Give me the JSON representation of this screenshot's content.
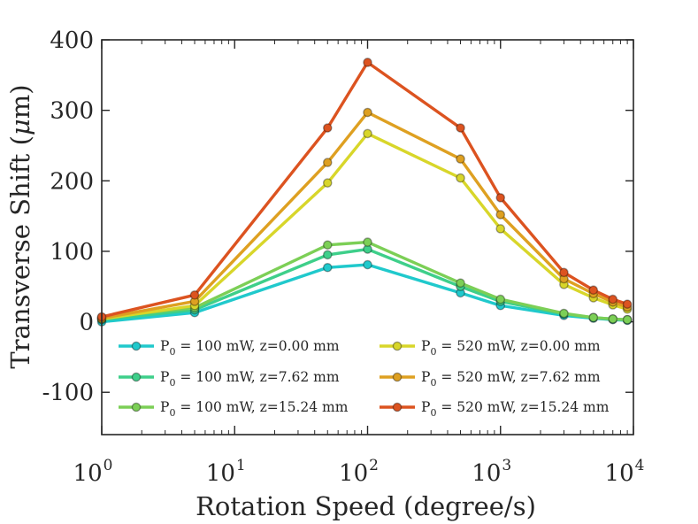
{
  "chart_data": {
    "type": "line",
    "x_scale": "log",
    "x": [
      1,
      5,
      50,
      100,
      500,
      1000,
      3000,
      5000,
      7000,
      9000
    ],
    "xlim": [
      1,
      10000
    ],
    "ylim": [
      -160,
      400
    ],
    "x_ticks": [
      {
        "value": 1,
        "base": "10",
        "exp": "0"
      },
      {
        "value": 10,
        "base": "10",
        "exp": "1"
      },
      {
        "value": 100,
        "base": "10",
        "exp": "2"
      },
      {
        "value": 1000,
        "base": "10",
        "exp": "3"
      },
      {
        "value": 10000,
        "base": "10",
        "exp": "4"
      }
    ],
    "y_ticks": [
      {
        "value": 400,
        "label": "400"
      },
      {
        "value": 300,
        "label": "300"
      },
      {
        "value": 200,
        "label": "200"
      },
      {
        "value": 100,
        "label": "100"
      },
      {
        "value": 0,
        "label": "0"
      },
      {
        "value": -100,
        "label": "-100"
      }
    ],
    "xlabel": "Rotation Speed (degree/s)",
    "ylabel_parts": {
      "before": "Transverse Shift (",
      "mu": "μ",
      "after": "m)"
    },
    "legend_placement": "lower-center",
    "series": [
      {
        "name_prefix": "P",
        "name_sub": "0",
        "name_rest": " = 100 mW, z=0.00 mm",
        "color": "#20c9cc",
        "values": [
          0,
          13,
          77,
          81,
          41,
          23,
          9,
          5,
          3,
          2
        ]
      },
      {
        "name_prefix": "P",
        "name_sub": "0",
        "name_rest": " = 100 mW, z=7.62 mm",
        "color": "#3ecf8a",
        "values": [
          3,
          17,
          95,
          103,
          50,
          29,
          11,
          6,
          4,
          3
        ]
      },
      {
        "name_prefix": "P",
        "name_sub": "0",
        "name_rest": " = 100 mW, z=15.24 mm",
        "color": "#7ccf56",
        "values": [
          6,
          20,
          109,
          113,
          55,
          32,
          12,
          6,
          4,
          3
        ]
      },
      {
        "name_prefix": "P",
        "name_sub": "0",
        "name_rest": " = 520 mW, z=0.00 mm",
        "color": "#d8d62a",
        "values": [
          4,
          23,
          197,
          267,
          204,
          132,
          53,
          34,
          24,
          18
        ]
      },
      {
        "name_prefix": "P",
        "name_sub": "0",
        "name_rest": " = 520 mW, z=7.62 mm",
        "color": "#dea021",
        "values": [
          5,
          29,
          226,
          297,
          231,
          152,
          61,
          40,
          28,
          21
        ]
      },
      {
        "name_prefix": "P",
        "name_sub": "0",
        "name_rest": " = 520 mW, z=15.24 mm",
        "color": "#dc5320",
        "values": [
          7,
          38,
          275,
          368,
          275,
          176,
          70,
          45,
          32,
          25
        ]
      }
    ]
  }
}
